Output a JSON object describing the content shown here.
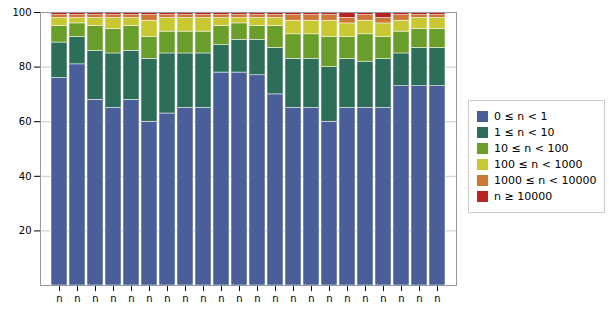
{
  "chart_data": {
    "type": "bar",
    "stacked": true,
    "categories": [
      "n",
      "n",
      "n",
      "n",
      "n",
      "n",
      "n",
      "n",
      "n",
      "n",
      "n",
      "n",
      "n",
      "n",
      "n",
      "n",
      "n",
      "n",
      "n",
      "n",
      "n",
      "n"
    ],
    "series": [
      {
        "name": "0 ≤ n < 1",
        "color": "#4a5f99",
        "values": [
          76,
          81,
          68,
          65,
          68,
          60,
          63,
          65,
          65,
          78,
          78,
          77,
          70,
          65,
          65,
          60,
          65,
          65,
          65,
          73,
          73,
          73
        ]
      },
      {
        "name": "1 ≤ n < 10",
        "color": "#2d6e5a",
        "values": [
          13,
          10,
          18,
          20,
          18,
          23,
          22,
          20,
          20,
          10,
          12,
          13,
          17,
          18,
          18,
          20,
          18,
          17,
          18,
          12,
          14,
          14
        ]
      },
      {
        "name": "10 ≤ n < 100",
        "color": "#6a9e2a",
        "values": [
          6,
          5,
          9,
          9,
          9,
          8,
          8,
          8,
          8,
          7,
          6,
          5,
          8,
          9,
          9,
          11,
          8,
          10,
          8,
          8,
          7,
          7
        ]
      },
      {
        "name": "100 ≤ n < 1000",
        "color": "#c8c832",
        "values": [
          3,
          2,
          3,
          4,
          3,
          6,
          5,
          5,
          5,
          3,
          2,
          3,
          3,
          5,
          5,
          6,
          5,
          5,
          5,
          4,
          4,
          4
        ]
      },
      {
        "name": "1000 ≤ n < 10000",
        "color": "#cc7733",
        "values": [
          1,
          1,
          1,
          1,
          1,
          2,
          1,
          1,
          1,
          1,
          1,
          1,
          1,
          2,
          2,
          2,
          2,
          2,
          2,
          2,
          1,
          1
        ]
      },
      {
        "name": "n ≥ 10000",
        "color": "#bb2222",
        "values": [
          1,
          1,
          1,
          1,
          1,
          1,
          1,
          1,
          1,
          1,
          1,
          1,
          1,
          1,
          1,
          1,
          2,
          1,
          2,
          1,
          1,
          1
        ]
      }
    ],
    "ylim": [
      0,
      100
    ],
    "yticks": [
      20,
      40,
      60,
      80,
      100
    ],
    "grid": true,
    "legend": "right"
  }
}
